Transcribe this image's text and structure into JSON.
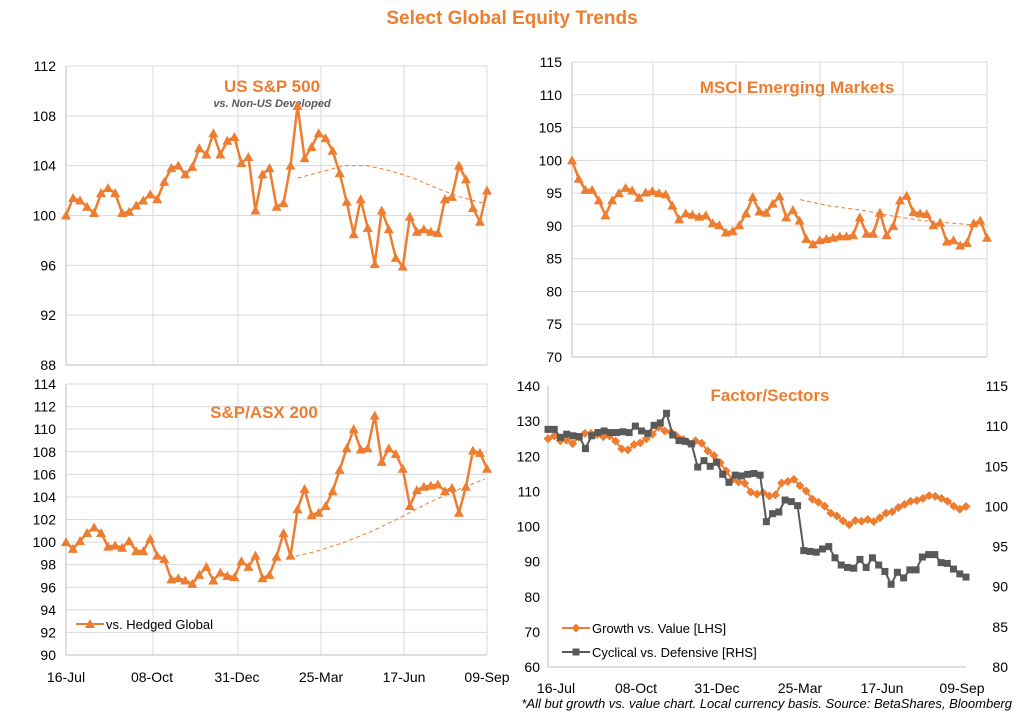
{
  "title": "Select Global Equity Trends",
  "footnote": "*All but growth vs. value chart. Local currency basis.  Source: BetaShares, Bloomberg",
  "colors": {
    "orange": "#ED7D31",
    "gray": "#595959",
    "grid": "#D9D9D9"
  },
  "chart_data": [
    {
      "type": "line",
      "title": "US S&P 500",
      "subtitle": "vs. Non-US Developed",
      "ylim": [
        88,
        112
      ],
      "yticks": [
        "112",
        "108",
        "104",
        "100",
        "96",
        "92",
        "88"
      ],
      "xticks": [],
      "series": [
        {
          "values": [
            100,
            101.4,
            101.2,
            100.7,
            100.2,
            101.8,
            102.2,
            101.8,
            100.2,
            100.3,
            100.8,
            101.2,
            101.7,
            101.3,
            102.7,
            103.8,
            104,
            103.3,
            103.9,
            105.4,
            104.9,
            106.6,
            104.9,
            106,
            106.3,
            104.2,
            104.7,
            100.4,
            103.3,
            103.8,
            100.7,
            101,
            104,
            108.8,
            104.6,
            105.5,
            106.6,
            106.2,
            105.2,
            103.4,
            101.1,
            98.5,
            101.3,
            99,
            96.1,
            100.4,
            98.9,
            96.6,
            95.9,
            99.9,
            98.7,
            98.9,
            98.7,
            98.6,
            101.3,
            101.5,
            104,
            102.9,
            100.6,
            99.5,
            102
          ]
        },
        {
          "dashed": true,
          "values": [
            103,
            103.5,
            104,
            104,
            103.6,
            103,
            102.2,
            101.5,
            101
          ]
        }
      ]
    },
    {
      "type": "line",
      "title": "MSCI Emerging Markets",
      "ylim": [
        70,
        115
      ],
      "yticks": [
        "115",
        "110",
        "105",
        "100",
        "95",
        "90",
        "85",
        "80",
        "75",
        "70"
      ],
      "xticks": [],
      "series": [
        {
          "values": [
            100,
            97.2,
            95.5,
            95.5,
            93.9,
            91.6,
            93.9,
            95,
            95.8,
            95.4,
            94.3,
            95.1,
            95.3,
            95,
            94.8,
            93.1,
            91,
            91.9,
            91.7,
            91.4,
            91.6,
            90.4,
            90.1,
            89,
            89.2,
            90.1,
            91.9,
            94.4,
            92.2,
            92,
            93.4,
            94.5,
            91.3,
            92.4,
            90.8,
            88,
            87.2,
            87.8,
            88,
            88.2,
            88.4,
            88.4,
            88.6,
            91.3,
            88.8,
            88.8,
            92,
            88.6,
            90,
            93.9,
            94.6,
            92.1,
            91.9,
            91.8,
            90.1,
            90.5,
            87.6,
            87.8,
            87,
            87.4,
            90.4,
            90.8,
            88.2
          ]
        },
        {
          "dashed": true,
          "values": [
            94,
            93,
            92.4,
            91.5,
            90.8,
            90.4,
            90
          ]
        }
      ]
    },
    {
      "type": "line",
      "title": "S&P/ASX 200",
      "ylim": [
        90,
        114
      ],
      "yticks": [
        "114",
        "112",
        "110",
        "108",
        "106",
        "104",
        "102",
        "100",
        "98",
        "96",
        "94",
        "92",
        "90"
      ],
      "xticks": [
        "16-Jul",
        "08-Oct",
        "31-Dec",
        "25-Mar",
        "17-Jun",
        "09-Sep"
      ],
      "legend": [
        "vs. Hedged Global"
      ],
      "series": [
        {
          "name": "vs. Hedged Global",
          "values": [
            100,
            99.4,
            100.1,
            100.8,
            101.3,
            100.8,
            99.6,
            99.7,
            99.5,
            100.1,
            99.2,
            99.2,
            100.3,
            98.8,
            98.5,
            96.7,
            96.8,
            96.6,
            96.3,
            97.1,
            97.8,
            96.6,
            97.3,
            97,
            96.9,
            98.3,
            97.8,
            98.8,
            96.8,
            97.1,
            98.7,
            100.8,
            98.8,
            102.9,
            104.7,
            102.4,
            102.6,
            103.2,
            104.5,
            106.4,
            108.3,
            110,
            108.2,
            108.3,
            111.2,
            107.1,
            108.3,
            107.8,
            106.5,
            103.2,
            104.6,
            104.9,
            105,
            105.1,
            104.5,
            104.8,
            102.6,
            104.9,
            108.1,
            107.9,
            106.5
          ]
        },
        {
          "dashed": true,
          "values": [
            98.6,
            99.2,
            100,
            101,
            102.2,
            103.5,
            104.6,
            105.6
          ]
        }
      ]
    },
    {
      "type": "line",
      "title": "Factor/Sectors",
      "ylim": [
        60,
        140
      ],
      "y2lim": [
        80,
        115
      ],
      "yticks": [
        "140",
        "130",
        "120",
        "110",
        "100",
        "90",
        "80",
        "70",
        "60"
      ],
      "y2ticks": [
        "115",
        "110",
        "105",
        "100",
        "95",
        "90",
        "85",
        "80"
      ],
      "xticks": [
        "16-Jul",
        "08-Oct",
        "31-Dec",
        "25-Mar",
        "17-Jun",
        "09-Sep"
      ],
      "legend": [
        "Growth vs. Value [LHS]",
        "Cyclical vs. Defensive [RHS]"
      ],
      "series": [
        {
          "name": "Growth vs. Value [LHS]",
          "axis": "left",
          "values": [
            125,
            125.8,
            124.4,
            124.6,
            123.6,
            125.4,
            126.5,
            126.5,
            126.2,
            125.6,
            125.8,
            124.3,
            122.1,
            121.8,
            123.3,
            123.8,
            125,
            126.3,
            128.3,
            127.2,
            126.9,
            125.6,
            124.8,
            123.6,
            124.4,
            123.7,
            121.5,
            120.2,
            118.2,
            115.8,
            113.3,
            112.7,
            112.3,
            109.8,
            109.2,
            109.6,
            108.7,
            109,
            112.4,
            112.8,
            113.4,
            111.6,
            110.1,
            107.8,
            106.9,
            105.8,
            103.8,
            103,
            101.6,
            100.5,
            101.7,
            101.5,
            102,
            101.4,
            102.5,
            103.8,
            104.2,
            105.4,
            106.3,
            107.2,
            107.4,
            108,
            108.8,
            108.6,
            108,
            107.2,
            105.8,
            104.9,
            105.7
          ]
        },
        {
          "name": "Cyclical vs. Defensive [RHS]",
          "axis": "right",
          "values": [
            109.6,
            109.6,
            108.6,
            109,
            108.8,
            108.7,
            107.2,
            108.8,
            109.2,
            109.4,
            109.2,
            109.2,
            109.3,
            109.2,
            110,
            109.4,
            109.1,
            110.1,
            110.4,
            111.6,
            108.9,
            108.2,
            108.1,
            107.8,
            104.9,
            105.7,
            105,
            105.5,
            104,
            103,
            103.9,
            103.8,
            104,
            104.1,
            103.9,
            98.1,
            99.1,
            99.3,
            100.8,
            100.6,
            100.1,
            94.5,
            94.4,
            94.3,
            94.7,
            95,
            93.6,
            92.7,
            92.4,
            92.3,
            93.4,
            92.4,
            93.6,
            92.7,
            91.9,
            90.3,
            91.8,
            91.1,
            92.1,
            92.1,
            93.7,
            94,
            94,
            93,
            92.9,
            92.2,
            91.6,
            91.2
          ]
        }
      ]
    }
  ]
}
